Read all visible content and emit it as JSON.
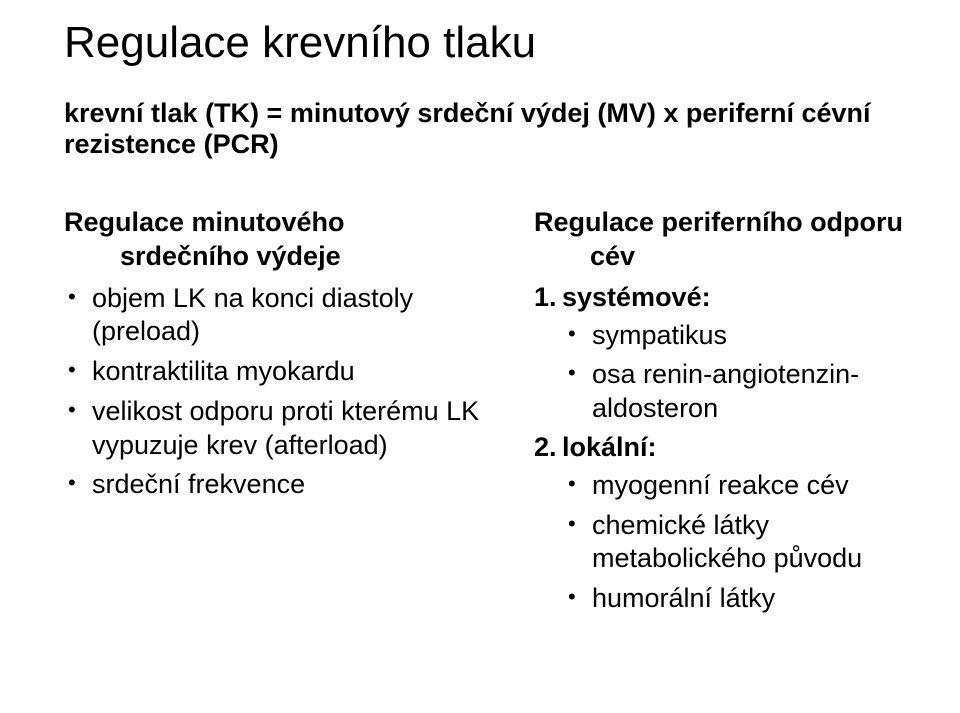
{
  "title": "Regulace krevního tlaku",
  "formula": "krevní tlak (TK) = minutový srdeční výdej (MV) x periferní cévní rezistence (PCR)",
  "left": {
    "heading_line1": "Regulace minutového",
    "heading_line2": "srdečního výdeje",
    "items": [
      "objem LK na konci diastoly (preload)",
      "kontraktilita myokardu",
      "velikost odporu proti kterému LK vypuzuje krev (afterload)",
      "srdeční frekvence"
    ]
  },
  "right": {
    "heading_line1": "Regulace periferního odporu",
    "heading_line2": "cév",
    "section1": {
      "num": "1.",
      "label": "systémové:",
      "items": [
        "sympatikus",
        "osa renin-angiotenzin-aldosteron"
      ]
    },
    "section2": {
      "num": "2.",
      "label": "lokální:",
      "items": [
        "myogenní reakce cév",
        "chemické látky metabolického původu",
        "humorální látky"
      ]
    }
  },
  "colors": {
    "text": "#000000",
    "background": "#ffffff"
  },
  "fonts": {
    "family": "Arial",
    "title_size_pt": 33,
    "body_size_pt": 20
  }
}
